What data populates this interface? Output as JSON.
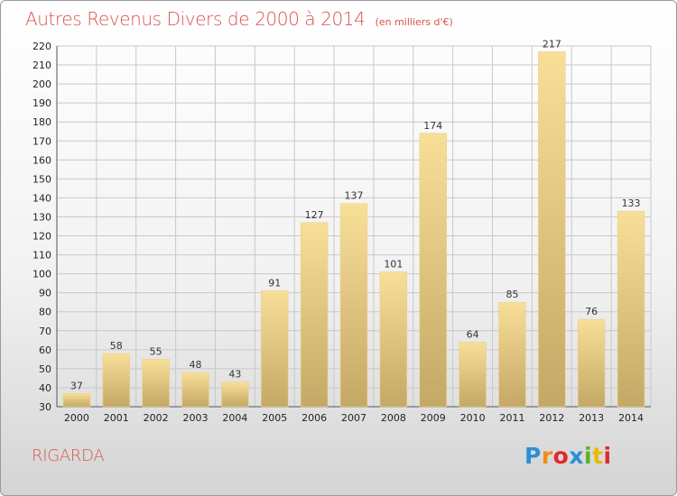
{
  "title": "Autres Revenus Divers de 2000 à 2014",
  "subtitle": "(en milliers d'€)",
  "place": "RIGARDA",
  "logo": {
    "text": "Proxiti",
    "letters": [
      "P",
      "r",
      "o",
      "x",
      "i",
      "t",
      "i"
    ],
    "colors": [
      "#2a8fd6",
      "#f08c1a",
      "#e02a2a",
      "#2a8fd6",
      "#5ab22e",
      "#e8b90a",
      "#e02a2a"
    ]
  },
  "colors": {
    "title": "#d9534f",
    "bar_light": "#f8df98",
    "bar_dark": "#c4a865",
    "grid": "#c8c8c8"
  },
  "chart_data": {
    "type": "bar",
    "title": "Autres Revenus Divers de 2000 à 2014",
    "subtitle": "(en milliers d'€)",
    "categories": [
      "2000",
      "2001",
      "2002",
      "2003",
      "2004",
      "2005",
      "2006",
      "2007",
      "2008",
      "2009",
      "2010",
      "2011",
      "2012",
      "2013",
      "2014"
    ],
    "values": [
      37,
      58,
      55,
      48,
      43,
      91,
      127,
      137,
      101,
      174,
      64,
      85,
      217,
      76,
      133
    ],
    "ylim": [
      30,
      220
    ],
    "yticks": [
      30,
      40,
      50,
      60,
      70,
      80,
      90,
      100,
      110,
      120,
      130,
      140,
      150,
      160,
      170,
      180,
      190,
      200,
      210,
      220
    ],
    "grid": true,
    "legend": "none"
  }
}
